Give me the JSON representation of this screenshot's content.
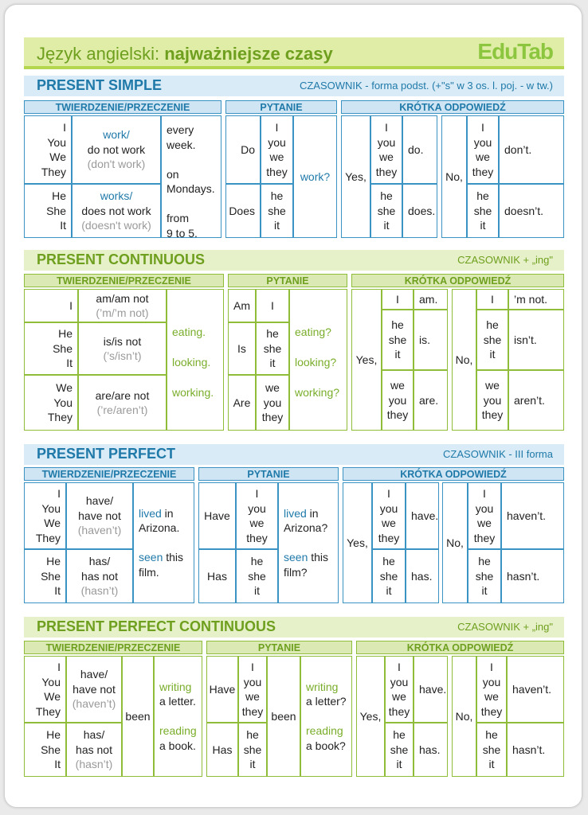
{
  "header": {
    "title_regular": "Język angielski: ",
    "title_bold": "najważniejsze czasy",
    "brand": "EduTab"
  },
  "labels": {
    "aff": "TWIERDZENIE/PRZECZENIE",
    "q": "PYTANIE",
    "short": "KRÓTKA ODPOWIEDŹ"
  },
  "s1": {
    "title": "PRESENT SIMPLE",
    "note": "CZASOWNIK - forma podst. (+\"s\" w 3 os. l. poj. - w tw.)",
    "subj_a": "I\nYou\nWe\nThey",
    "subj_b": "He\nShe\nIt",
    "verb_a1": "work/",
    "verb_a2": "do not work",
    "verb_a3": "(don't work)",
    "verb_b1": "works/",
    "verb_b2": "does not work",
    "verb_b3": "(doesn't work)",
    "time": "every\nweek.\n\non\nMondays.\n\nfrom\n9 to 5.",
    "q_aux_a": "Do",
    "q_aux_b": "Does",
    "q_subj_a": "I\nyou\nwe\nthey",
    "q_subj_b": "he\nshe\nit",
    "q_verb": "work?",
    "yes": "Yes,",
    "no": "No,",
    "y_subj_a": "I\nyou\nwe\nthey",
    "y_ans_a": "do.",
    "y_subj_b": "he\nshe\nit",
    "y_ans_b": "does.",
    "n_subj_a": "I\nyou\nwe\nthey",
    "n_ans_a": "don’t.",
    "n_subj_b": "he\nshe\nit",
    "n_ans_b": "doesn’t."
  },
  "s2": {
    "title": "PRESENT CONTINUOUS",
    "note": "CZASOWNIK + „ing\"",
    "subj_1": "I",
    "subj_2": "He\nShe\nIt",
    "subj_3": "We\nYou\nThey",
    "be_1a": "am/am not",
    "be_1b": "(’m/’m not)",
    "be_2a": "is/is not",
    "be_2b": "(’s/isn’t)",
    "be_3a": "are/are not",
    "be_3b": "(’re/aren’t)",
    "v1": "eating.",
    "v2": "looking.",
    "v3": "working.",
    "q_aux_1": "Am",
    "q_aux_2": "Is",
    "q_aux_3": "Are",
    "q_subj_1": "I",
    "q_subj_2": "he\nshe\nit",
    "q_subj_3": "we\nyou\nthey",
    "qv1": "eating?",
    "qv2": "looking?",
    "qv3": "working?",
    "yes": "Yes,",
    "no": "No,",
    "y_subj_1": "I",
    "y_ans_1": "am.",
    "y_subj_2": "he\nshe\nit",
    "y_ans_2": "is.",
    "y_subj_3": "we\nyou\nthey",
    "y_ans_3": "are.",
    "n_subj_1": "I",
    "n_ans_1": "’m not.",
    "n_subj_2": "he\nshe\nit",
    "n_ans_2": "isn’t.",
    "n_subj_3": "we\nyou\nthey",
    "n_ans_3": "aren’t."
  },
  "s3": {
    "title": "PRESENT PERFECT",
    "note": "CZASOWNIK - III forma",
    "subj_a": "I\nYou\nWe\nThey",
    "subj_b": "He\nShe\nIt",
    "aux_a1": "have/",
    "aux_a2": "have not",
    "aux_a3": "(haven’t)",
    "aux_b1": "has/",
    "aux_b2": "has not",
    "aux_b3": "(hasn’t)",
    "p1": "lived",
    "p1r": " in\nArizona.",
    "p2": "seen",
    "p2r": " this\nfilm.",
    "q_aux_a": "Have",
    "q_aux_b": "Has",
    "q_subj_a": "I\nyou\nwe\nthey",
    "q_subj_b": "he\nshe\nit",
    "qp1": "lived",
    "qp1r": " in\nArizona?",
    "qp2": "seen",
    "qp2r": " this\nfilm?",
    "yes": "Yes,",
    "no": "No,",
    "y_subj_a": "I\nyou\nwe\nthey",
    "y_ans_a": "have.",
    "y_subj_b": "he\nshe\nit",
    "y_ans_b": "has.",
    "n_subj_a": "I\nyou\nwe\nthey",
    "n_ans_a": "haven’t.",
    "n_subj_b": "he\nshe\nit",
    "n_ans_b": "hasn’t."
  },
  "s4": {
    "title": "PRESENT PERFECT CONTINUOUS",
    "note": "CZASOWNIK + „ing\"",
    "subj_a": "I\nYou\nWe\nThey",
    "subj_b": "He\nShe\nIt",
    "aux_a1": "have/",
    "aux_a2": "have not",
    "aux_a3": "(haven’t)",
    "aux_b1": "has/",
    "aux_b2": "has not",
    "aux_b3": "(hasn’t)",
    "been": "been",
    "v1": "writing",
    "v1r": "a letter.",
    "v2": "reading",
    "v2r": "a book.",
    "q_aux_a": "Have",
    "q_aux_b": "Has",
    "q_subj_a": "I\nyou\nwe\nthey",
    "q_subj_b": "he\nshe\nit",
    "q_been": "been",
    "qv1": "writing",
    "qv1r": "a letter?",
    "qv2": "reading",
    "qv2r": "a book?",
    "yes": "Yes,",
    "no": "No,",
    "y_subj_a": "I\nyou\nwe\nthey",
    "y_ans_a": "have.",
    "y_subj_b": "he\nshe\nit",
    "y_ans_b": "has.",
    "n_subj_a": "I\nyou\nwe\nthey",
    "n_ans_a": "haven’t.",
    "n_subj_b": "he\nshe\nit",
    "n_ans_b": "hasn’t."
  }
}
